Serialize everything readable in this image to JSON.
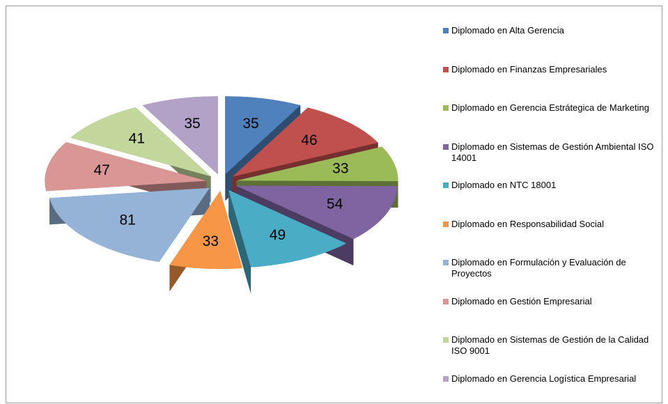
{
  "chart_data": {
    "type": "pie",
    "categories": [
      "Diplomado en Alta Gerencia",
      "Diplomado en Finanzas Empresariales",
      "Diplomado en Gerencia Estrátegica de Marketing",
      "Diplomado en Sistemas de Gestión Ambiental ISO 14001",
      "Diplomado en NTC 18001",
      "Diplomado en Responsabilidad Social",
      "Diplomado en Formulación y Evaluación de Proyectos",
      "Diplomado en Gestión Empresarial",
      "Diplomado en Sistemas de Gestión de la Calidad ISO 9001",
      "Diplomado en Gerencia Logística Empresarial"
    ],
    "values": [
      35,
      46,
      33,
      54,
      49,
      33,
      81,
      47,
      41,
      35
    ],
    "colors": [
      "#4f81bd",
      "#c0504d",
      "#9bbb59",
      "#8064a2",
      "#4bacc6",
      "#f79646",
      "#95b3d7",
      "#d99694",
      "#c3d69b",
      "#b3a2c7"
    ],
    "legend": "right"
  }
}
